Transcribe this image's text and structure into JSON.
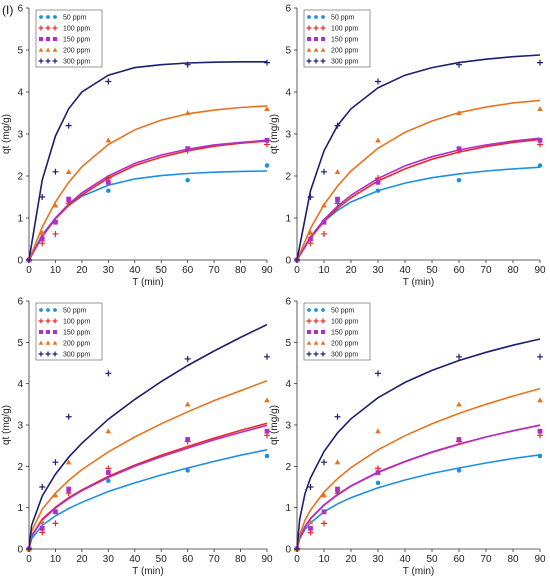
{
  "figure_label": "(I)",
  "colors": {
    "50 ppm": "#1f8fe0",
    "100 ppm": "#e8292b",
    "150 ppm": "#b12fc9",
    "200 ppm": "#e8731f",
    "300 ppm": "#1b1f6e"
  },
  "markers": {
    "50 ppm": "circle",
    "100 ppm": "plus",
    "150 ppm": "square",
    "200 ppm": "triangle",
    "300 ppm": "plus"
  },
  "chart_data": [
    {
      "type": "scatter",
      "xlabel": "T (min)",
      "ylabel": "qt (mg/g)",
      "xlim": [
        0,
        90
      ],
      "ylim": [
        0,
        6
      ],
      "xticks": [
        0,
        10,
        20,
        30,
        40,
        50,
        60,
        70,
        80,
        90
      ],
      "yticks": [
        0,
        1,
        2,
        3,
        4,
        5,
        6
      ],
      "legend_position": "top-left",
      "series": [
        {
          "name": "50 ppm",
          "x": [
            0,
            5,
            10,
            15,
            30,
            60,
            90
          ],
          "y": [
            0,
            0.5,
            0.9,
            1.4,
            1.65,
            1.9,
            2.25
          ]
        },
        {
          "name": "100 ppm",
          "x": [
            0,
            5,
            10,
            15,
            30,
            60,
            90
          ],
          "y": [
            0,
            0.4,
            0.62,
            1.35,
            1.95,
            2.6,
            2.75
          ]
        },
        {
          "name": "150 ppm",
          "x": [
            0,
            5,
            10,
            15,
            30,
            60,
            90
          ],
          "y": [
            0,
            0.5,
            0.9,
            1.45,
            1.85,
            2.65,
            2.85
          ]
        },
        {
          "name": "200 ppm",
          "x": [
            0,
            5,
            10,
            15,
            30,
            60,
            90
          ],
          "y": [
            0,
            0.65,
            1.3,
            2.1,
            2.85,
            3.5,
            3.6
          ]
        },
        {
          "name": "300 ppm",
          "x": [
            0,
            5,
            10,
            15,
            30,
            60,
            90
          ],
          "y": [
            0,
            1.5,
            2.1,
            3.2,
            4.25,
            4.65,
            4.7
          ]
        }
      ],
      "fits": [
        {
          "name": "50 ppm",
          "x": [
            0,
            5,
            10,
            15,
            20,
            30,
            40,
            50,
            60,
            70,
            80,
            90
          ],
          "y": [
            0,
            0.6,
            1.0,
            1.3,
            1.52,
            1.78,
            1.93,
            2.01,
            2.06,
            2.09,
            2.11,
            2.12
          ]
        },
        {
          "name": "100 ppm",
          "x": [
            0,
            5,
            10,
            15,
            20,
            30,
            40,
            50,
            60,
            70,
            80,
            90
          ],
          "y": [
            0,
            0.55,
            0.98,
            1.3,
            1.55,
            1.95,
            2.25,
            2.45,
            2.6,
            2.71,
            2.78,
            2.83
          ]
        },
        {
          "name": "150 ppm",
          "x": [
            0,
            5,
            10,
            15,
            20,
            30,
            40,
            50,
            60,
            70,
            80,
            90
          ],
          "y": [
            0,
            0.57,
            1.0,
            1.33,
            1.6,
            2.0,
            2.3,
            2.5,
            2.64,
            2.74,
            2.8,
            2.85
          ]
        },
        {
          "name": "200 ppm",
          "x": [
            0,
            5,
            10,
            15,
            20,
            30,
            40,
            50,
            60,
            70,
            80,
            90
          ],
          "y": [
            0,
            0.78,
            1.38,
            1.85,
            2.22,
            2.75,
            3.1,
            3.33,
            3.48,
            3.57,
            3.63,
            3.67
          ]
        },
        {
          "name": "300 ppm",
          "x": [
            0,
            5,
            10,
            15,
            20,
            30,
            40,
            50,
            60,
            70,
            80,
            90
          ],
          "y": [
            0,
            1.9,
            2.95,
            3.6,
            4.0,
            4.4,
            4.58,
            4.65,
            4.69,
            4.71,
            4.72,
            4.72
          ]
        }
      ]
    },
    {
      "type": "scatter",
      "xlabel": "T (min)",
      "ylabel": "qt (mg/g)",
      "xlim": [
        0,
        90
      ],
      "ylim": [
        0,
        6
      ],
      "xticks": [
        0,
        10,
        20,
        30,
        40,
        50,
        60,
        70,
        80,
        90
      ],
      "yticks": [
        0,
        1,
        2,
        3,
        4,
        5,
        6
      ],
      "legend_position": "top-left",
      "series": [
        {
          "name": "50 ppm",
          "x": [
            0,
            5,
            10,
            15,
            30,
            60,
            90
          ],
          "y": [
            0,
            0.5,
            0.9,
            1.4,
            1.65,
            1.9,
            2.25
          ]
        },
        {
          "name": "100 ppm",
          "x": [
            0,
            5,
            10,
            15,
            30,
            60,
            90
          ],
          "y": [
            0,
            0.4,
            0.62,
            1.35,
            1.95,
            2.6,
            2.75
          ]
        },
        {
          "name": "150 ppm",
          "x": [
            0,
            5,
            10,
            15,
            30,
            60,
            90
          ],
          "y": [
            0,
            0.5,
            0.9,
            1.45,
            1.85,
            2.65,
            2.85
          ]
        },
        {
          "name": "200 ppm",
          "x": [
            0,
            5,
            10,
            15,
            30,
            60,
            90
          ],
          "y": [
            0,
            0.65,
            1.3,
            2.1,
            2.85,
            3.5,
            3.6
          ]
        },
        {
          "name": "300 ppm",
          "x": [
            0,
            5,
            10,
            15,
            30,
            60,
            90
          ],
          "y": [
            0,
            1.5,
            2.1,
            3.2,
            4.25,
            4.65,
            4.7
          ]
        }
      ],
      "fits": [
        {
          "name": "50 ppm",
          "x": [
            0,
            5,
            10,
            15,
            20,
            30,
            40,
            50,
            60,
            70,
            80,
            90
          ],
          "y": [
            0,
            0.55,
            0.92,
            1.18,
            1.38,
            1.65,
            1.83,
            1.96,
            2.05,
            2.12,
            2.17,
            2.21
          ]
        },
        {
          "name": "100 ppm",
          "x": [
            0,
            5,
            10,
            15,
            20,
            30,
            40,
            50,
            60,
            70,
            80,
            90
          ],
          "y": [
            0,
            0.52,
            0.92,
            1.23,
            1.48,
            1.88,
            2.17,
            2.4,
            2.57,
            2.7,
            2.8,
            2.87
          ]
        },
        {
          "name": "150 ppm",
          "x": [
            0,
            5,
            10,
            15,
            20,
            30,
            40,
            50,
            60,
            70,
            80,
            90
          ],
          "y": [
            0,
            0.55,
            0.96,
            1.28,
            1.54,
            1.94,
            2.24,
            2.46,
            2.62,
            2.74,
            2.83,
            2.9
          ]
        },
        {
          "name": "200 ppm",
          "x": [
            0,
            5,
            10,
            15,
            20,
            30,
            40,
            50,
            60,
            70,
            80,
            90
          ],
          "y": [
            0,
            0.75,
            1.32,
            1.76,
            2.12,
            2.66,
            3.04,
            3.31,
            3.51,
            3.64,
            3.74,
            3.8
          ]
        },
        {
          "name": "300 ppm",
          "x": [
            0,
            5,
            10,
            15,
            20,
            30,
            40,
            50,
            60,
            70,
            80,
            90
          ],
          "y": [
            0,
            1.65,
            2.6,
            3.2,
            3.6,
            4.1,
            4.4,
            4.58,
            4.7,
            4.78,
            4.84,
            4.88
          ]
        }
      ]
    },
    {
      "type": "scatter",
      "xlabel": "T (min)",
      "ylabel": "qt (mg/g)",
      "xlim": [
        0,
        90
      ],
      "ylim": [
        0,
        6
      ],
      "xticks": [
        0,
        10,
        20,
        30,
        40,
        50,
        60,
        70,
        80,
        90
      ],
      "yticks": [
        0,
        1,
        2,
        3,
        4,
        5,
        6
      ],
      "legend_position": "top-left",
      "series": [
        {
          "name": "50 ppm",
          "x": [
            0,
            5,
            10,
            15,
            30,
            60,
            90
          ],
          "y": [
            0,
            0.5,
            0.9,
            1.4,
            1.65,
            1.9,
            2.25
          ]
        },
        {
          "name": "100 ppm",
          "x": [
            0,
            5,
            10,
            15,
            30,
            60,
            90
          ],
          "y": [
            0,
            0.4,
            0.62,
            1.35,
            1.95,
            2.6,
            2.75
          ]
        },
        {
          "name": "150 ppm",
          "x": [
            0,
            5,
            10,
            15,
            30,
            60,
            90
          ],
          "y": [
            0,
            0.5,
            0.9,
            1.45,
            1.85,
            2.65,
            2.85
          ]
        },
        {
          "name": "200 ppm",
          "x": [
            0,
            5,
            10,
            15,
            30,
            60,
            90
          ],
          "y": [
            0,
            0.65,
            1.3,
            2.1,
            2.85,
            3.5,
            3.6
          ]
        },
        {
          "name": "300 ppm",
          "x": [
            0,
            5,
            10,
            15,
            30,
            60,
            90
          ],
          "y": [
            0,
            1.5,
            2.1,
            3.2,
            4.25,
            4.6,
            4.65
          ]
        }
      ],
      "fits": [
        {
          "name": "50 ppm",
          "x": [
            0,
            1,
            5,
            10,
            15,
            20,
            30,
            40,
            50,
            60,
            70,
            80,
            90
          ],
          "y": [
            0,
            0.25,
            0.57,
            0.8,
            0.98,
            1.13,
            1.39,
            1.6,
            1.79,
            1.96,
            2.12,
            2.27,
            2.4
          ]
        },
        {
          "name": "100 ppm",
          "x": [
            0,
            1,
            5,
            10,
            15,
            20,
            30,
            40,
            50,
            60,
            70,
            80,
            90
          ],
          "y": [
            0,
            0.32,
            0.72,
            1.01,
            1.24,
            1.43,
            1.76,
            2.03,
            2.27,
            2.48,
            2.68,
            2.87,
            3.04
          ]
        },
        {
          "name": "150 ppm",
          "x": [
            0,
            1,
            5,
            10,
            15,
            20,
            30,
            40,
            50,
            60,
            70,
            80,
            90
          ],
          "y": [
            0,
            0.31,
            0.7,
            0.99,
            1.22,
            1.41,
            1.73,
            2.0,
            2.23,
            2.44,
            2.64,
            2.82,
            2.99
          ]
        },
        {
          "name": "200 ppm",
          "x": [
            0,
            1,
            5,
            10,
            15,
            20,
            30,
            40,
            50,
            60,
            70,
            80,
            90
          ],
          "y": [
            0,
            0.43,
            0.96,
            1.35,
            1.66,
            1.92,
            2.35,
            2.71,
            3.03,
            3.32,
            3.59,
            3.83,
            4.07
          ]
        },
        {
          "name": "300 ppm",
          "x": [
            0,
            1,
            5,
            10,
            15,
            20,
            30,
            40,
            50,
            60,
            70,
            80,
            90
          ],
          "y": [
            0,
            0.57,
            1.28,
            1.81,
            2.22,
            2.56,
            3.14,
            3.62,
            4.05,
            4.44,
            4.79,
            5.12,
            5.43
          ]
        }
      ]
    },
    {
      "type": "scatter",
      "xlabel": "T (min)",
      "ylabel": "qt (mg/g)",
      "xlim": [
        0,
        90
      ],
      "ylim": [
        0,
        6
      ],
      "xticks": [
        0,
        10,
        20,
        30,
        40,
        50,
        60,
        70,
        80,
        90
      ],
      "yticks": [
        0,
        1,
        2,
        3,
        4,
        5,
        6
      ],
      "legend_position": "top-left",
      "series": [
        {
          "name": "50 ppm",
          "x": [
            0,
            5,
            10,
            15,
            30,
            60,
            90
          ],
          "y": [
            0,
            0.5,
            0.9,
            1.4,
            1.6,
            1.9,
            2.25
          ]
        },
        {
          "name": "100 ppm",
          "x": [
            0,
            5,
            10,
            15,
            30,
            60,
            90
          ],
          "y": [
            0,
            0.4,
            0.62,
            1.35,
            1.95,
            2.6,
            2.75
          ]
        },
        {
          "name": "150 ppm",
          "x": [
            0,
            5,
            10,
            15,
            30,
            60,
            90
          ],
          "y": [
            0,
            0.5,
            0.9,
            1.45,
            1.85,
            2.65,
            2.85
          ]
        },
        {
          "name": "200 ppm",
          "x": [
            0,
            5,
            10,
            15,
            30,
            60,
            90
          ],
          "y": [
            0,
            0.65,
            1.3,
            2.1,
            2.85,
            3.5,
            3.6
          ]
        },
        {
          "name": "300 ppm",
          "x": [
            0,
            5,
            10,
            15,
            30,
            60,
            90
          ],
          "y": [
            0,
            1.5,
            2.1,
            3.2,
            4.25,
            4.65,
            4.65
          ]
        }
      ],
      "fits": [
        {
          "name": "50 ppm",
          "x": [
            0,
            1,
            3,
            5,
            10,
            15,
            20,
            30,
            40,
            50,
            60,
            70,
            80,
            90
          ],
          "y": [
            0,
            0.25,
            0.48,
            0.63,
            0.9,
            1.09,
            1.24,
            1.48,
            1.67,
            1.83,
            1.96,
            2.08,
            2.19,
            2.28
          ]
        },
        {
          "name": "100 ppm",
          "x": [
            0,
            1,
            3,
            5,
            10,
            15,
            20,
            30,
            40,
            50,
            60,
            70,
            80,
            90
          ],
          "y": [
            0,
            0.26,
            0.54,
            0.73,
            1.06,
            1.31,
            1.52,
            1.85,
            2.11,
            2.34,
            2.53,
            2.71,
            2.86,
            3.0
          ]
        },
        {
          "name": "150 ppm",
          "x": [
            0,
            1,
            3,
            5,
            10,
            15,
            20,
            30,
            40,
            50,
            60,
            70,
            80,
            90
          ],
          "y": [
            0,
            0.27,
            0.55,
            0.74,
            1.07,
            1.32,
            1.53,
            1.86,
            2.12,
            2.35,
            2.54,
            2.71,
            2.86,
            2.99
          ]
        },
        {
          "name": "200 ppm",
          "x": [
            0,
            1,
            3,
            5,
            10,
            15,
            20,
            30,
            40,
            50,
            60,
            70,
            80,
            90
          ],
          "y": [
            0,
            0.34,
            0.7,
            0.94,
            1.38,
            1.7,
            1.97,
            2.4,
            2.74,
            3.03,
            3.28,
            3.5,
            3.7,
            3.88
          ]
        },
        {
          "name": "300 ppm",
          "x": [
            0,
            1,
            3,
            5,
            10,
            15,
            20,
            30,
            40,
            50,
            60,
            70,
            80,
            90
          ],
          "y": [
            0,
            0.72,
            1.35,
            1.72,
            2.36,
            2.81,
            3.15,
            3.66,
            4.03,
            4.32,
            4.56,
            4.76,
            4.93,
            5.08
          ]
        }
      ]
    }
  ]
}
